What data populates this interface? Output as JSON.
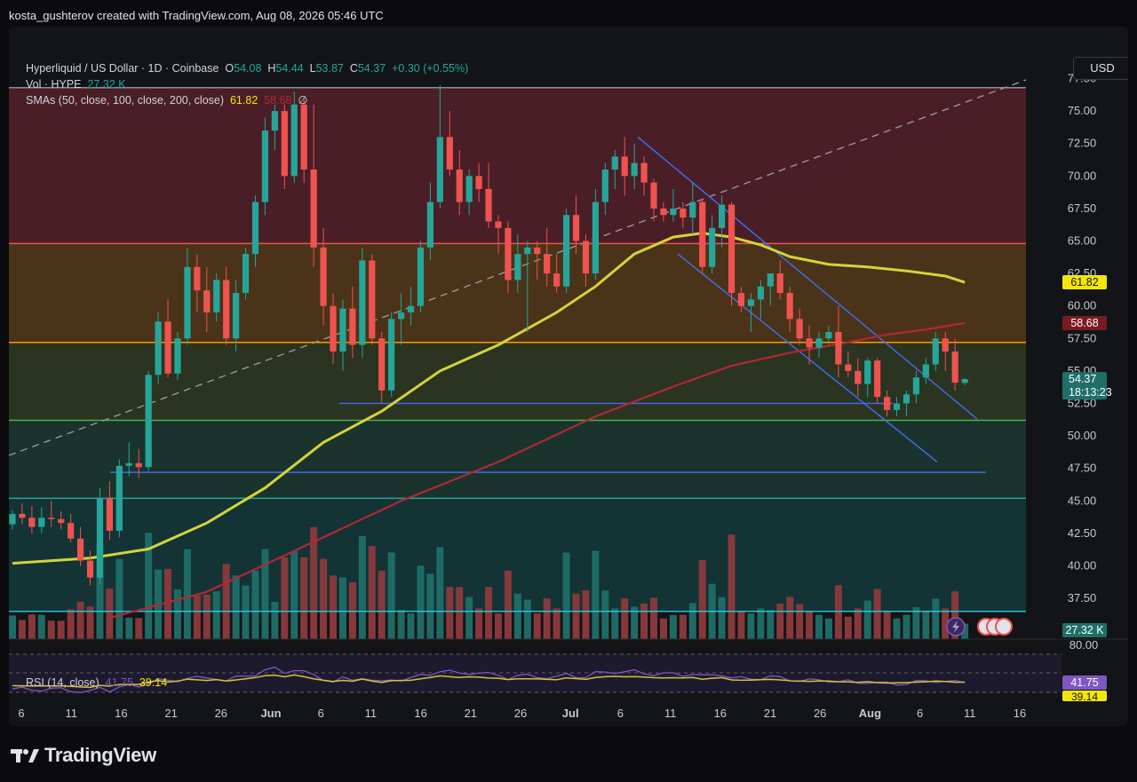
{
  "header": {
    "caption": "kosta_gushterov created with TradingView.com, Aug 08, 2026 05:46 UTC"
  },
  "legend": {
    "symbol": "Hyperliquid / US Dollar · 1D · Coinbase",
    "o_label": "O",
    "o_value": "54.08",
    "h_label": "H",
    "h_value": "54.44",
    "l_label": "L",
    "l_value": "53.87",
    "c_label": "C",
    "c_value": "54.37",
    "change": "+0.30 (+0.55%)",
    "vol_label": "Vol · HYPE",
    "vol_value": "27.32 K",
    "sma_label": "SMAs (50, close, 100, close, 200, close)",
    "sma_50": "61.82",
    "sma_100": "58.68",
    "sma_extra": "∅"
  },
  "currency_button": "USD",
  "rsi_legend": {
    "label": "RSI (14, close)",
    "rsi": "41.75",
    "ma": "39.14"
  },
  "brand": "TradingView",
  "colors": {
    "up": "#26a69a",
    "down": "#ef5350",
    "sma50": "#d4d43a",
    "sma100": "#b22833",
    "trend": "#3f6be8"
  },
  "chart_data": {
    "type": "candlestick",
    "title": "Hyperliquid / US Dollar · 1D · Coinbase",
    "x_ticks": [
      "6",
      "11",
      "16",
      "21",
      "26",
      "Jun",
      "6",
      "11",
      "16",
      "21",
      "26",
      "Jul",
      "6",
      "11",
      "16",
      "21",
      "26",
      "Aug",
      "6",
      "11",
      "16"
    ],
    "y_ticks": [
      "77.50",
      "75.00",
      "72.50",
      "70.00",
      "67.50",
      "65.00",
      "62.50",
      "60.00",
      "57.50",
      "55.00",
      "52.50",
      "50.00",
      "47.50",
      "45.00",
      "42.50",
      "40.00",
      "37.50"
    ],
    "ylim": [
      35.5,
      79
    ],
    "price_labels": {
      "sma50": "61.82",
      "sma100": "58.68",
      "last": "54.37",
      "countdown": "18:13:23",
      "volume": "27.32 K"
    },
    "fib_levels": [
      76.8,
      64.8,
      57.2,
      51.2,
      45.2,
      36.5
    ],
    "candles": [
      [
        43.2,
        44.3,
        42.8,
        44.0
      ],
      [
        44.0,
        44.8,
        43.2,
        43.7
      ],
      [
        43.7,
        44.6,
        42.5,
        43.0
      ],
      [
        43.0,
        44.5,
        42.5,
        43.7
      ],
      [
        43.7,
        45.0,
        43.0,
        43.6
      ],
      [
        43.6,
        44.2,
        42.8,
        43.3
      ],
      [
        43.3,
        44.0,
        41.8,
        42.1
      ],
      [
        42.1,
        43.0,
        40.0,
        40.4
      ],
      [
        40.4,
        41.2,
        38.5,
        39.1
      ],
      [
        39.1,
        46.0,
        38.6,
        45.2
      ],
      [
        45.2,
        46.5,
        42.0,
        42.7
      ],
      [
        42.7,
        48.2,
        42.2,
        47.7
      ],
      [
        47.7,
        49.5,
        46.9,
        47.9
      ],
      [
        47.9,
        49.0,
        46.8,
        47.6
      ],
      [
        47.6,
        55.0,
        47.3,
        54.7
      ],
      [
        54.7,
        59.5,
        54.0,
        58.8
      ],
      [
        58.8,
        60.5,
        54.5,
        54.8
      ],
      [
        54.8,
        58.0,
        54.3,
        57.5
      ],
      [
        57.5,
        64.5,
        57.0,
        63.0
      ],
      [
        63.0,
        64.0,
        59.5,
        61.2
      ],
      [
        61.2,
        63.0,
        58.0,
        59.5
      ],
      [
        59.5,
        62.5,
        58.8,
        62.0
      ],
      [
        62.0,
        63.0,
        57.0,
        57.5
      ],
      [
        57.5,
        62.0,
        56.5,
        61.0
      ],
      [
        61.0,
        64.5,
        60.5,
        64.0
      ],
      [
        64.0,
        68.5,
        63.0,
        68.0
      ],
      [
        68.0,
        74.5,
        67.0,
        73.5
      ],
      [
        73.5,
        75.5,
        72.0,
        75.0
      ],
      [
        75.0,
        75.5,
        69.0,
        70.0
      ],
      [
        70.0,
        76.5,
        69.5,
        75.5
      ],
      [
        75.5,
        76.0,
        69.5,
        70.5
      ],
      [
        70.5,
        75.5,
        63.0,
        64.5
      ],
      [
        64.5,
        66.0,
        58.5,
        60.0
      ],
      [
        60.0,
        61.0,
        55.5,
        56.5
      ],
      [
        56.5,
        60.5,
        55.0,
        59.8
      ],
      [
        59.8,
        61.5,
        56.0,
        57.0
      ],
      [
        57.0,
        64.5,
        56.0,
        63.5
      ],
      [
        63.5,
        64.0,
        57.0,
        57.5
      ],
      [
        57.5,
        58.0,
        52.5,
        53.5
      ],
      [
        53.5,
        59.5,
        53.0,
        59.0
      ],
      [
        59.0,
        61.0,
        57.0,
        59.5
      ],
      [
        59.5,
        61.5,
        58.5,
        60.0
      ],
      [
        60.0,
        65.0,
        59.5,
        64.5
      ],
      [
        64.5,
        69.5,
        63.5,
        68.0
      ],
      [
        68.0,
        77.0,
        67.5,
        73.0
      ],
      [
        73.0,
        75.0,
        70.0,
        70.5
      ],
      [
        70.5,
        72.0,
        67.0,
        68.0
      ],
      [
        68.0,
        70.5,
        67.0,
        70.0
      ],
      [
        70.0,
        71.0,
        68.0,
        69.0
      ],
      [
        69.0,
        71.0,
        66.0,
        66.5
      ],
      [
        66.5,
        67.0,
        64.0,
        66.0
      ],
      [
        66.0,
        66.5,
        61.0,
        62.0
      ],
      [
        62.0,
        65.5,
        61.0,
        64.0
      ],
      [
        64.0,
        65.0,
        58.0,
        64.5
      ],
      [
        64.5,
        65.0,
        62.0,
        64.0
      ],
      [
        64.0,
        66.0,
        61.5,
        62.5
      ],
      [
        62.5,
        64.0,
        61.0,
        61.5
      ],
      [
        61.5,
        67.5,
        61.0,
        67.0
      ],
      [
        67.0,
        68.5,
        64.0,
        65.0
      ],
      [
        65.0,
        65.5,
        61.5,
        62.5
      ],
      [
        62.5,
        69.0,
        62.0,
        68.0
      ],
      [
        68.0,
        71.0,
        67.0,
        70.5
      ],
      [
        70.5,
        72.0,
        69.0,
        71.5
      ],
      [
        71.5,
        73.0,
        68.5,
        70.0
      ],
      [
        70.0,
        72.5,
        69.0,
        71.0
      ],
      [
        71.0,
        71.5,
        68.5,
        69.5
      ],
      [
        69.5,
        69.8,
        66.5,
        67.5
      ],
      [
        67.5,
        68.0,
        66.5,
        67.0
      ],
      [
        67.0,
        69.0,
        66.5,
        67.5
      ],
      [
        67.5,
        68.0,
        66.0,
        66.8
      ],
      [
        66.8,
        69.5,
        65.5,
        68.0
      ],
      [
        68.0,
        68.2,
        62.5,
        63.0
      ],
      [
        63.0,
        67.0,
        62.5,
        66.0
      ],
      [
        66.0,
        68.5,
        64.5,
        67.8
      ],
      [
        67.8,
        68.0,
        60.0,
        61.0
      ],
      [
        61.0,
        61.5,
        59.5,
        60.0
      ],
      [
        60.0,
        61.0,
        58.0,
        60.5
      ],
      [
        60.5,
        62.0,
        59.0,
        61.5
      ],
      [
        61.5,
        62.5,
        60.0,
        62.5
      ],
      [
        62.5,
        63.5,
        60.5,
        61.0
      ],
      [
        61.0,
        61.5,
        58.0,
        59.0
      ],
      [
        59.0,
        59.8,
        57.0,
        57.5
      ],
      [
        57.5,
        58.5,
        55.5,
        56.8
      ],
      [
        56.8,
        58.0,
        56.0,
        57.5
      ],
      [
        57.5,
        58.5,
        57.0,
        58.0
      ],
      [
        58.0,
        60.0,
        54.5,
        55.5
      ],
      [
        55.5,
        56.5,
        54.5,
        55.0
      ],
      [
        55.0,
        56.0,
        53.0,
        54.0
      ],
      [
        54.0,
        56.0,
        53.0,
        55.8
      ],
      [
        55.8,
        56.0,
        52.5,
        53.0
      ],
      [
        53.0,
        53.5,
        51.5,
        52.0
      ],
      [
        52.0,
        53.0,
        51.5,
        52.5
      ],
      [
        52.5,
        53.5,
        51.5,
        53.2
      ],
      [
        53.2,
        55.0,
        52.5,
        54.5
      ],
      [
        54.5,
        56.0,
        54.0,
        55.5
      ],
      [
        55.5,
        58.0,
        55.0,
        57.5
      ],
      [
        57.5,
        58.0,
        55.0,
        56.5
      ],
      [
        56.5,
        57.5,
        53.5,
        54.1
      ],
      [
        54.08,
        54.44,
        53.87,
        54.37
      ]
    ],
    "sma50": [
      [
        0,
        40.2
      ],
      [
        8,
        40.6
      ],
      [
        14,
        41.3
      ],
      [
        20,
        43.3
      ],
      [
        26,
        46.0
      ],
      [
        32,
        49.5
      ],
      [
        38,
        51.9
      ],
      [
        44,
        55.0
      ],
      [
        50,
        57.0
      ],
      [
        56,
        59.5
      ],
      [
        60,
        61.5
      ],
      [
        64,
        64.0
      ],
      [
        68,
        65.3
      ],
      [
        71,
        65.6
      ],
      [
        74,
        65.3
      ],
      [
        77,
        64.7
      ],
      [
        80,
        63.8
      ],
      [
        84,
        63.2
      ],
      [
        88,
        63.0
      ],
      [
        92,
        62.7
      ],
      [
        96,
        62.3
      ],
      [
        98,
        61.82
      ]
    ],
    "sma100": [
      [
        10,
        36.0
      ],
      [
        20,
        38.0
      ],
      [
        30,
        41.5
      ],
      [
        40,
        45.0
      ],
      [
        50,
        48.0
      ],
      [
        60,
        51.5
      ],
      [
        68,
        53.8
      ],
      [
        74,
        55.4
      ],
      [
        80,
        56.4
      ],
      [
        86,
        57.2
      ],
      [
        90,
        57.8
      ],
      [
        94,
        58.2
      ],
      [
        98,
        58.68
      ]
    ]
  }
}
